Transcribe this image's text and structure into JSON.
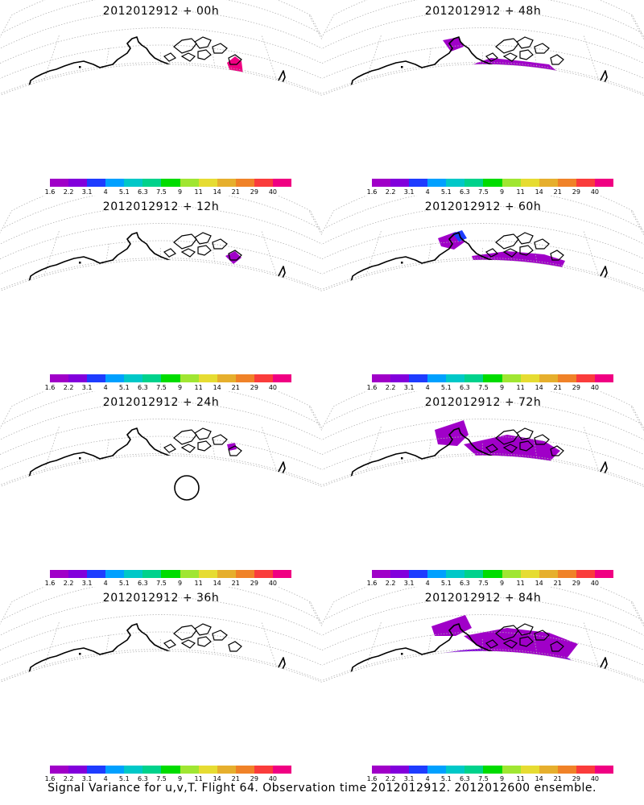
{
  "panels": [
    {
      "title": "2012012912 + 00h",
      "lead": 0
    },
    {
      "title": "2012012912 + 48h",
      "lead": 48
    },
    {
      "title": "2012012912 + 12h",
      "lead": 12
    },
    {
      "title": "2012012912 + 60h",
      "lead": 60
    },
    {
      "title": "2012012912 + 24h",
      "lead": 24
    },
    {
      "title": "2012012912 + 72h",
      "lead": 72
    },
    {
      "title": "2012012912 + 36h",
      "lead": 36
    },
    {
      "title": "2012012912 + 84h",
      "lead": 84
    }
  ],
  "colorbar": {
    "labels": [
      "1.6",
      "2.2",
      "3.1",
      "4",
      "5.1",
      "6.3",
      "7.5",
      "9",
      "11",
      "14",
      "21",
      "29",
      "40"
    ],
    "colors": [
      "#a000c8",
      "#8200dc",
      "#1e3cff",
      "#00a0ff",
      "#00c8c8",
      "#00d28c",
      "#00dc00",
      "#a0e632",
      "#e6dc32",
      "#e6af2d",
      "#f08228",
      "#fa3c3c",
      "#f00082"
    ]
  },
  "caption": "Signal Variance for u,v,T. Flight 64. Observation time 2012012912. 2012012600 ensemble.",
  "colors": {
    "coast": "#000000",
    "grid": "#b4b4b4",
    "fill_low": "#a000c8",
    "fill_mid": "#8200dc",
    "fill_blue": "#1e3cff",
    "fill_cyan": "#00a0ff",
    "marker": "#f00082"
  }
}
